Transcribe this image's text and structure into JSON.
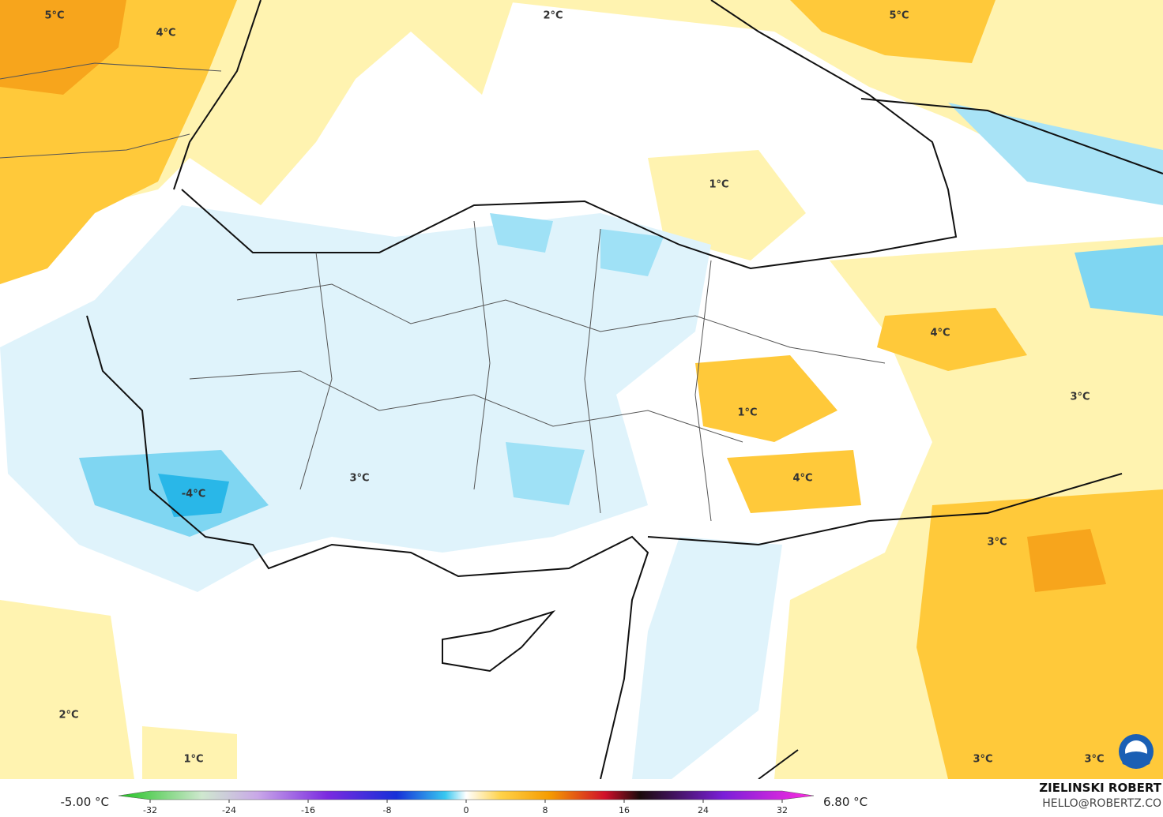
{
  "map": {
    "labels": [
      "5°C",
      "4°C",
      "2°C",
      "5°C",
      "1°C",
      "4°C",
      "3°C",
      "1°C",
      "4°C",
      "3°C",
      "-4°C",
      "3°C",
      "2°C",
      "1°C",
      "3°C",
      "3°C"
    ]
  },
  "colorbar": {
    "min_label": "-5.00 °C",
    "max_label": "6.80 °C",
    "ticks": [
      -32,
      -24,
      -16,
      -8,
      0,
      8,
      16,
      24,
      32
    ]
  },
  "credit": {
    "name": "ZIELINSKI ROBERT",
    "email": "HELLO@ROBERTZ.CO"
  }
}
